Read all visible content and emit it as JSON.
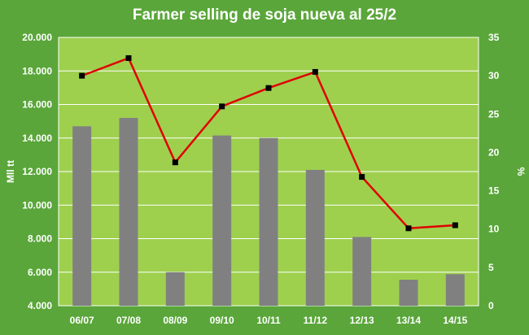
{
  "chart_data": {
    "type": "bar",
    "title": "Farmer selling de soja nueva al 25/2",
    "categories": [
      "06/07",
      "07/08",
      "08/09",
      "09/10",
      "10/11",
      "11/12",
      "12/13",
      "13/14",
      "14/15"
    ],
    "ylabel": "Mll tt",
    "y2label": "%",
    "ylim": [
      4000,
      20000
    ],
    "y2lim": [
      0,
      35
    ],
    "yticks": [
      "4.000",
      "6.000",
      "8.000",
      "10.000",
      "12.000",
      "14.000",
      "16.000",
      "18.000",
      "20.000"
    ],
    "y2ticks": [
      "0",
      "5",
      "10",
      "15",
      "20",
      "25",
      "30",
      "35"
    ],
    "series": [
      {
        "kind": "bar",
        "axis": "left",
        "values": [
          14700,
          15200,
          6000,
          14150,
          14000,
          12100,
          8100,
          5550,
          5880
        ],
        "color": "#808080"
      },
      {
        "kind": "line",
        "axis": "right",
        "values": [
          30.0,
          32.3,
          18.7,
          26.0,
          28.4,
          30.5,
          16.8,
          10.1,
          10.5
        ],
        "color": "#e00000",
        "marker_color": "#000000"
      }
    ],
    "grid": true,
    "plot_bg": "#9ed04e",
    "frame_bg": "#5aa63a",
    "text_color": "#ffffff"
  }
}
